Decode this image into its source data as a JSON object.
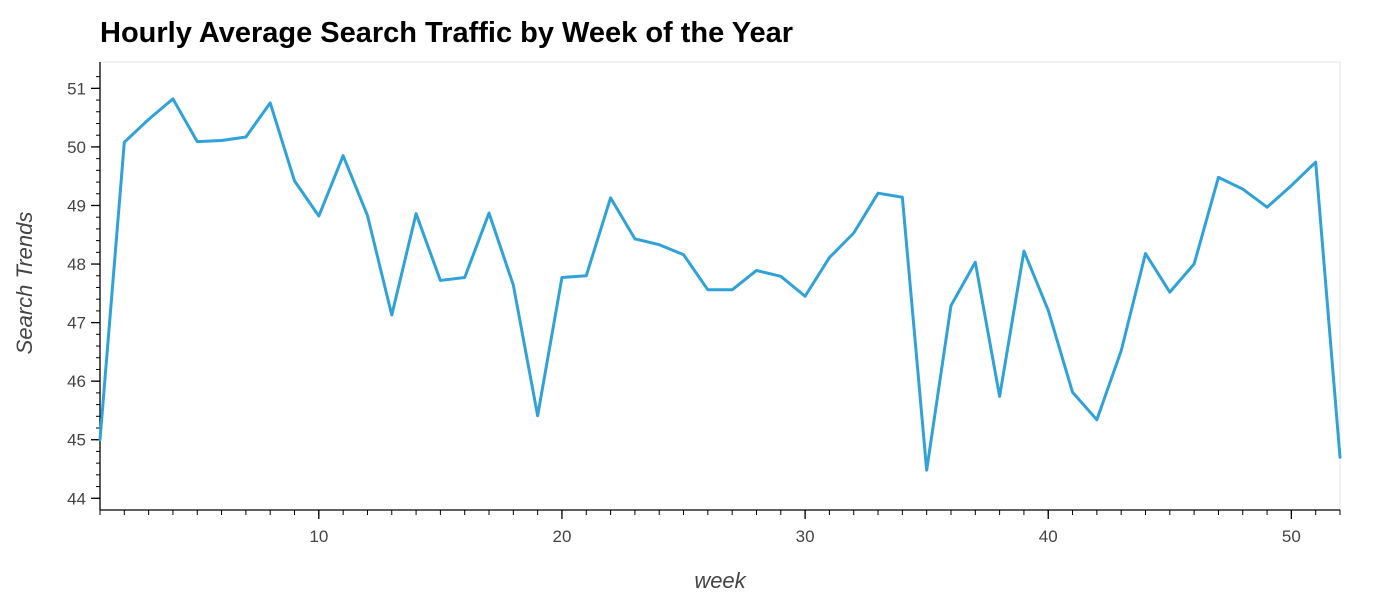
{
  "chart_data": {
    "type": "line",
    "title": "Hourly Average Search Traffic by Week of the Year",
    "xlabel": "week",
    "ylabel": "Search Trends",
    "xlim": [
      1,
      52
    ],
    "ylim": [
      43.8,
      51.45
    ],
    "x_ticks": [
      10,
      20,
      30,
      40,
      50
    ],
    "y_ticks": [
      44,
      45,
      46,
      47,
      48,
      49,
      50,
      51
    ],
    "grid": false,
    "legend": "none",
    "line_color": "#30a2da",
    "series": [
      {
        "x": [
          1,
          2,
          3,
          4,
          5,
          6,
          7,
          8,
          9,
          10,
          11,
          12,
          13,
          14,
          15,
          16,
          17,
          18,
          19,
          20,
          21,
          22,
          23,
          24,
          25,
          26,
          27,
          28,
          29,
          30,
          31,
          32,
          33,
          34,
          35,
          36,
          37,
          38,
          39,
          40,
          41,
          42,
          43,
          44,
          45,
          46,
          47,
          48,
          49,
          50,
          51,
          52
        ],
        "values": [
          45.0,
          50.08,
          50.47,
          50.82,
          50.09,
          50.11,
          50.17,
          50.75,
          49.42,
          48.82,
          49.85,
          48.83,
          47.13,
          48.86,
          47.72,
          47.77,
          48.87,
          47.64,
          45.41,
          47.77,
          47.8,
          49.13,
          48.43,
          48.33,
          48.16,
          47.56,
          47.56,
          47.89,
          47.79,
          47.45,
          48.11,
          48.53,
          49.21,
          49.14,
          44.48,
          47.29,
          48.03,
          45.74,
          48.22,
          47.21,
          45.81,
          45.34,
          46.52,
          48.18,
          47.52,
          48.0,
          49.48,
          49.28,
          48.97,
          49.34,
          49.74,
          44.7
        ]
      }
    ]
  }
}
